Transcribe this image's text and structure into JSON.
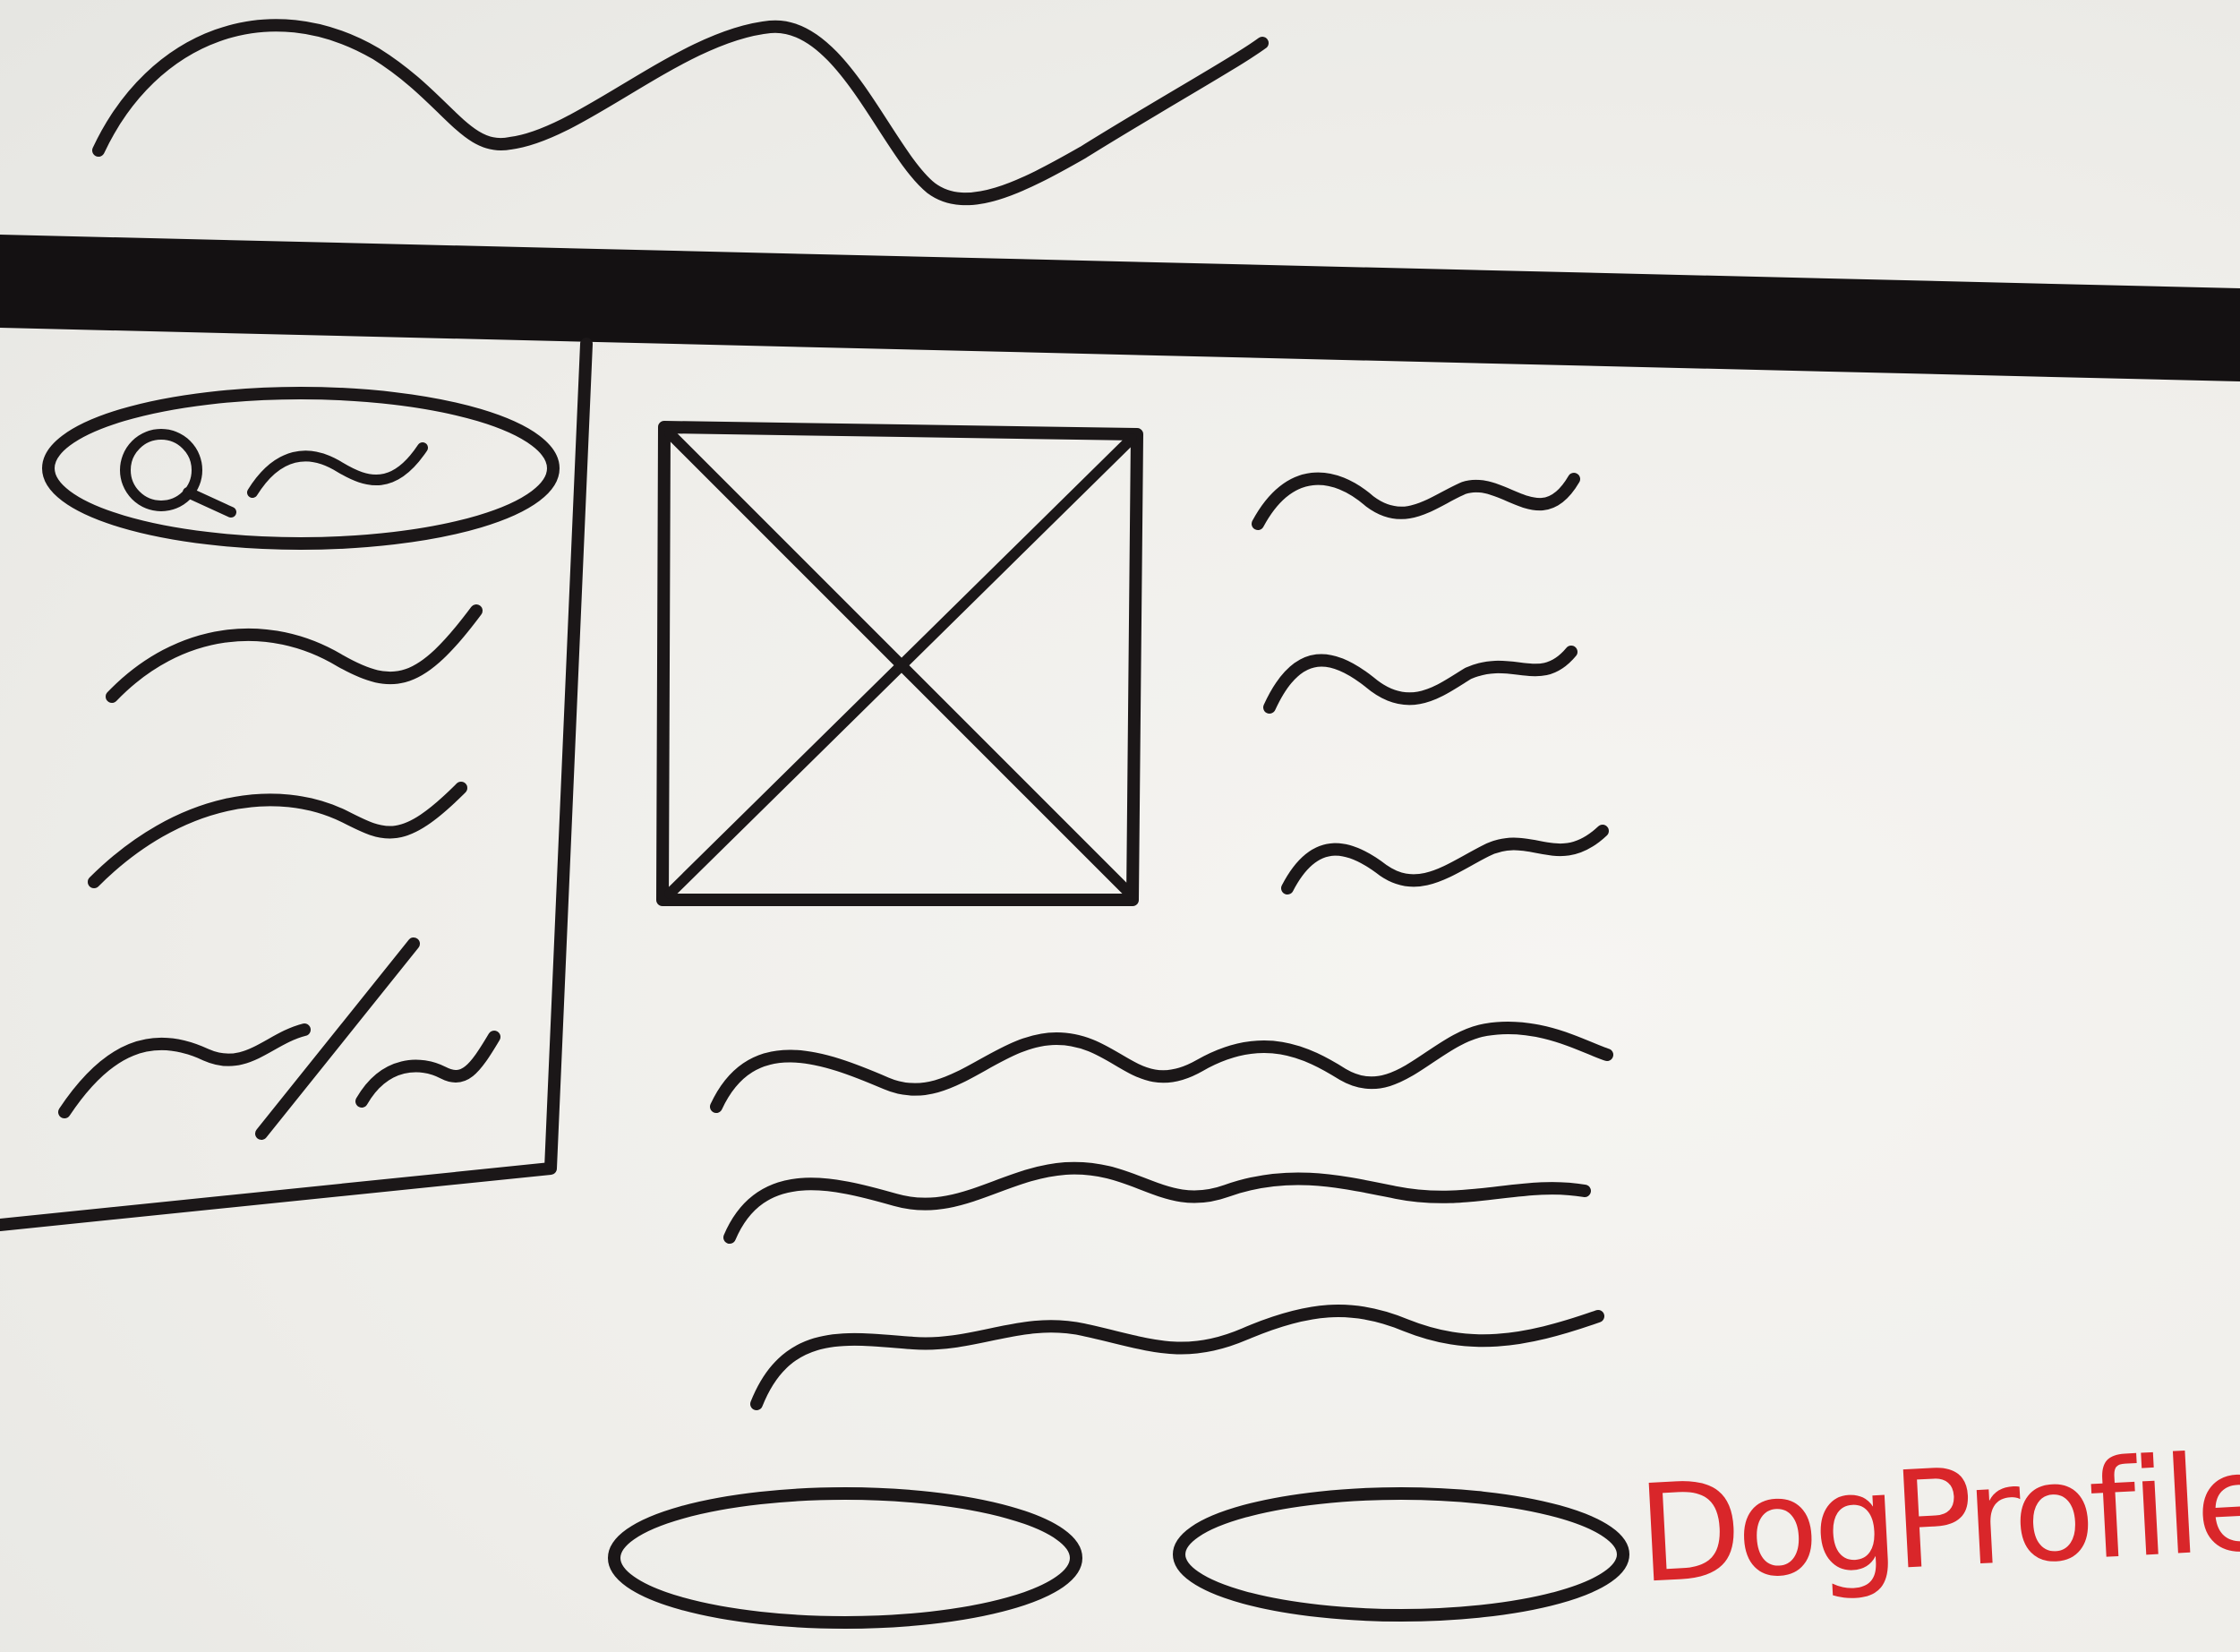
{
  "annotation": {
    "label": "DogProfile",
    "color": "#d9262a"
  },
  "icons": {
    "search": "search-icon",
    "image_placeholder": "image-placeholder-icon"
  },
  "colors": {
    "ink": "#1b1718",
    "paper": "#f2f1ee"
  }
}
